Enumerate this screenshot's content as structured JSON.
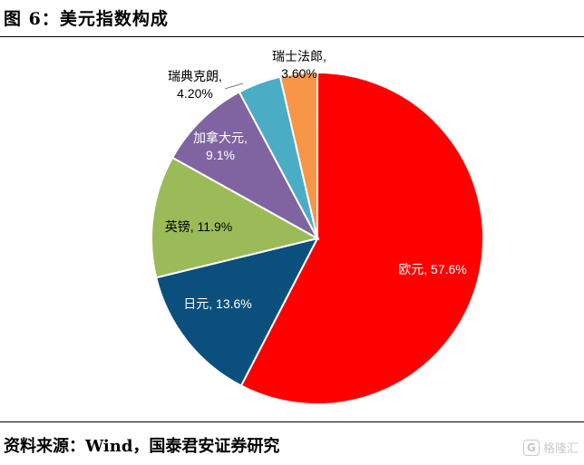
{
  "figure_title": "图 6：美元指数构成",
  "source": "资料来源：Wind，国泰君安证券研究",
  "watermark": {
    "logo_glyph": "G",
    "text": "格隆汇"
  },
  "colors": {
    "eur": "#ff0000",
    "jpy": "#0b4f7c",
    "gbp": "#9bbb59",
    "cad": "#8064a2",
    "sek": "#4bacc6",
    "chf": "#f79646"
  },
  "chart_data": {
    "type": "pie",
    "title": "",
    "start_angle_deg": 0,
    "direction": "clockwise",
    "slices": [
      {
        "name": "欧元",
        "value": 57.6,
        "label": "欧元, 57.6%",
        "color": "#ff0000",
        "label_position": "inside",
        "label_color": "#ffffff"
      },
      {
        "name": "日元",
        "value": 13.6,
        "label": "日元, 13.6%",
        "color": "#0b4f7c",
        "label_position": "inside",
        "label_color": "#ffffff"
      },
      {
        "name": "英镑",
        "value": 11.9,
        "label": "英镑, 11.9%",
        "color": "#9bbb59",
        "label_position": "inside",
        "label_color": "#000000"
      },
      {
        "name": "加拿大元",
        "value": 9.1,
        "label": "加拿大元,\n9.1%",
        "color": "#8064a2",
        "label_position": "inside",
        "label_color": "#ffffff"
      },
      {
        "name": "瑞典克朗",
        "value": 4.2,
        "label": "瑞典克朗,\n4.20%",
        "color": "#4bacc6",
        "label_position": "outside",
        "label_color": "#000000"
      },
      {
        "name": "瑞士法郎",
        "value": 3.6,
        "label": "瑞士法郎,\n3.60%",
        "color": "#f79646",
        "label_position": "outside",
        "label_color": "#000000"
      }
    ]
  }
}
